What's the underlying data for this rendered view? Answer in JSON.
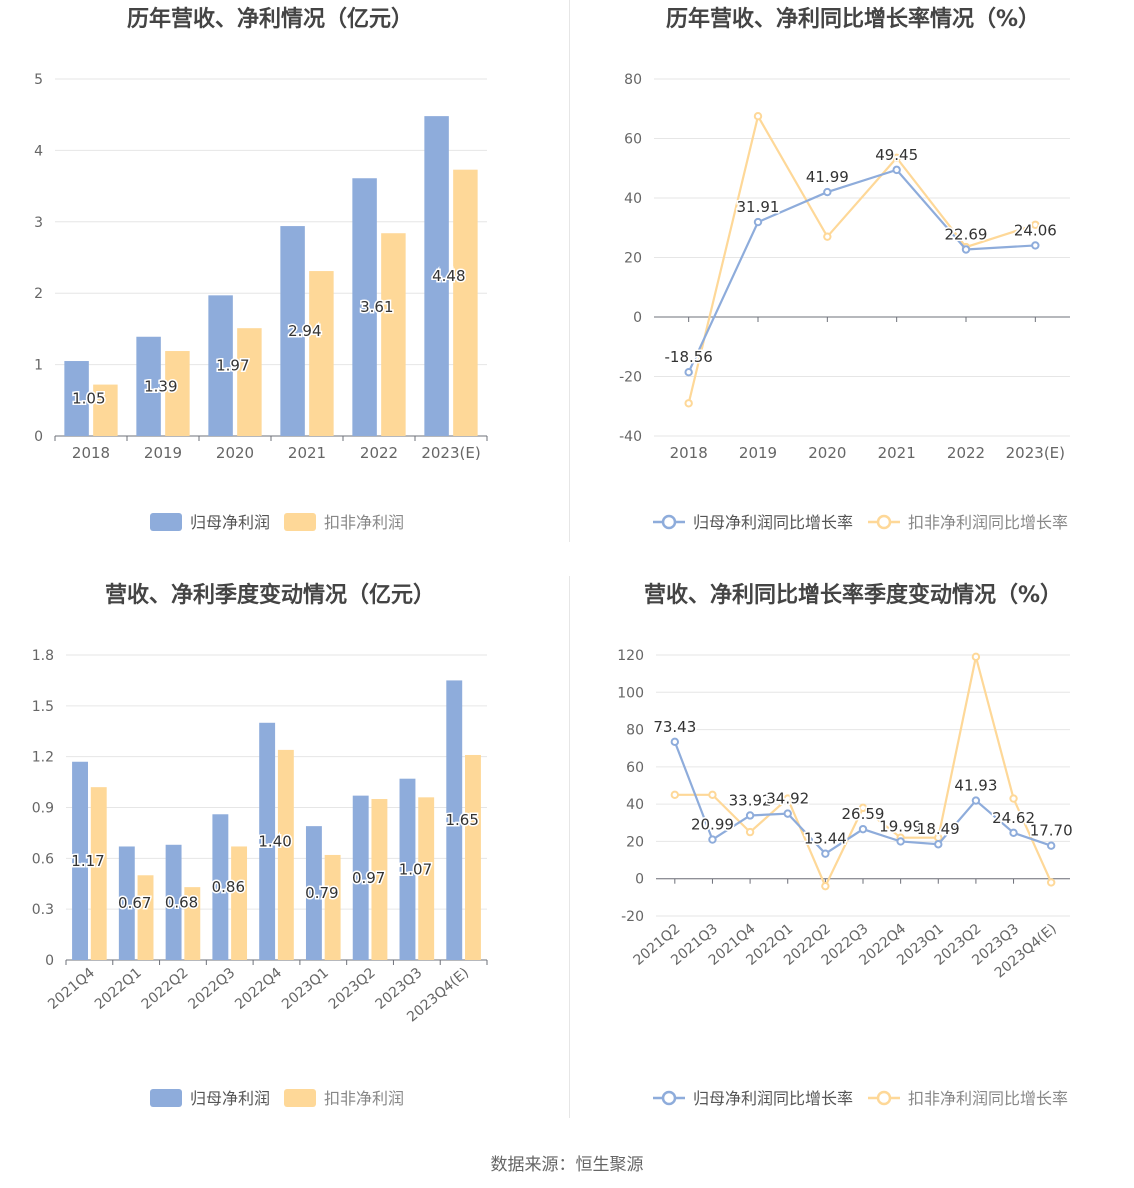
{
  "source": "数据来源：恒生聚源",
  "colors": {
    "series1": "#8eacdb",
    "series2": "#fed898",
    "grid": "#e6e6e6",
    "axis": "#666666",
    "title": "#444444",
    "label": "#333333",
    "legendText": "#555555"
  },
  "chart_data": [
    {
      "type": "bar",
      "title": "历年营收、净利情况（亿元）",
      "categories": [
        "2018",
        "2019",
        "2020",
        "2021",
        "2022",
        "2023(E)"
      ],
      "ylim": [
        0,
        5
      ],
      "yticks": [
        "0",
        "1",
        "2",
        "3",
        "4",
        "5"
      ],
      "grid": true,
      "legend_position": "bottom",
      "series": [
        {
          "name": "归母净利润",
          "values": [
            1.05,
            1.39,
            1.97,
            2.94,
            3.61,
            4.48
          ],
          "labels": [
            "1.05",
            "1.39",
            "1.97",
            "2.94",
            "3.61",
            "4.48"
          ]
        },
        {
          "name": "扣非净利润",
          "values": [
            0.72,
            1.19,
            1.51,
            2.31,
            2.84,
            3.73
          ]
        }
      ]
    },
    {
      "type": "line",
      "title": "历年营收、净利同比增长率情况（%）",
      "categories": [
        "2018",
        "2019",
        "2020",
        "2021",
        "2022",
        "2023(E)"
      ],
      "ylim": [
        -40,
        80
      ],
      "yticks": [
        "-40",
        "-20",
        "0",
        "20",
        "40",
        "60",
        "80"
      ],
      "grid": true,
      "legend_position": "bottom",
      "series": [
        {
          "name": "归母净利润同比增长率",
          "values": [
            -18.56,
            31.91,
            41.99,
            49.45,
            22.69,
            24.06
          ],
          "labels": [
            "-18.56",
            "31.91",
            "41.99",
            "49.45",
            "22.69",
            "24.06"
          ]
        },
        {
          "name": "扣非净利润同比增长率",
          "values": [
            -29,
            67.5,
            27,
            53.5,
            23.5,
            31
          ]
        }
      ]
    },
    {
      "type": "bar",
      "title": "营收、净利季度变动情况（亿元）",
      "categories": [
        "2021Q4",
        "2022Q1",
        "2022Q2",
        "2022Q3",
        "2022Q4",
        "2023Q1",
        "2023Q2",
        "2023Q3",
        "2023Q4(E)"
      ],
      "ylim": [
        0,
        1.8
      ],
      "yticks": [
        "0",
        "0.3",
        "0.6",
        "0.9",
        "1.2",
        "1.5",
        "1.8"
      ],
      "grid": true,
      "legend_position": "bottom",
      "series": [
        {
          "name": "归母净利润",
          "values": [
            1.17,
            0.67,
            0.68,
            0.86,
            1.4,
            0.79,
            0.97,
            1.07,
            1.65
          ],
          "labels": [
            "1.17",
            "0.67",
            "0.68",
            "0.86",
            "1.40",
            "0.79",
            "0.97",
            "1.07",
            "1.65"
          ]
        },
        {
          "name": "扣非净利润",
          "values": [
            1.02,
            0.5,
            0.43,
            0.67,
            1.24,
            0.62,
            0.95,
            0.96,
            1.21
          ]
        }
      ]
    },
    {
      "type": "line",
      "title": "营收、净利同比增长率季度变动情况（%）",
      "categories": [
        "2021Q2",
        "2021Q3",
        "2021Q4",
        "2022Q1",
        "2022Q2",
        "2022Q3",
        "2022Q4",
        "2023Q1",
        "2023Q2",
        "2023Q3",
        "2023Q4(E)"
      ],
      "ylim": [
        -20,
        120
      ],
      "yticks": [
        "-20",
        "0",
        "20",
        "40",
        "60",
        "80",
        "100",
        "120"
      ],
      "grid": true,
      "legend_position": "bottom",
      "series": [
        {
          "name": "归母净利润同比增长率",
          "values": [
            73.43,
            20.99,
            33.92,
            34.92,
            13.44,
            26.59,
            19.99,
            18.49,
            41.93,
            24.62,
            17.7
          ],
          "labels": [
            "73.43",
            "20.99",
            "33.92",
            "34.92",
            "13.44",
            "26.59",
            "19.99",
            "18.49",
            "41.93",
            "24.62",
            "17.70"
          ]
        },
        {
          "name": "扣非净利润同比增长率",
          "values": [
            45,
            45,
            25,
            43,
            -4,
            38,
            22,
            22,
            119,
            43,
            -2
          ]
        }
      ]
    }
  ]
}
